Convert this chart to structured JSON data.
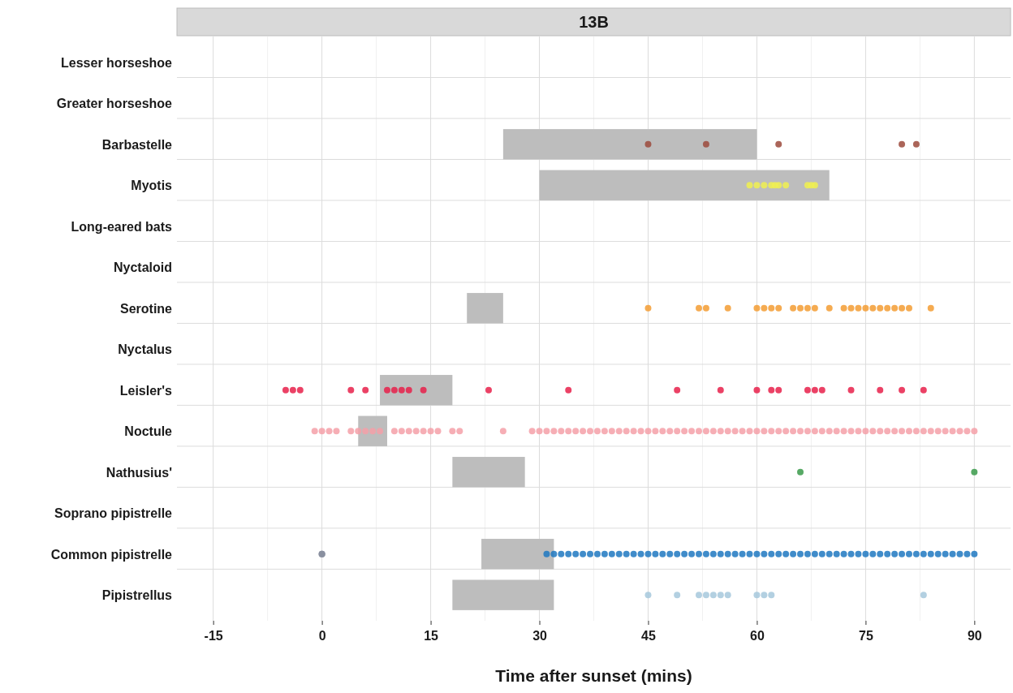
{
  "chart_data": {
    "type": "bar",
    "orientation": "horizontal",
    "title": "13B",
    "xlabel": "Time after sunset (mins)",
    "categories": [
      "Lesser horseshoe",
      "Greater horseshoe",
      "Barbastelle",
      "Myotis",
      "Long-eared bats",
      "Nyctaloid",
      "Serotine",
      "Nyctalus",
      "Leisler's",
      "Noctule",
      "Nathusius'",
      "Soprano pipistrelle",
      "Common pipistrelle",
      "Pipistrellus"
    ],
    "xlim": [
      -20,
      95
    ],
    "xticks": [
      -15,
      0,
      15,
      30,
      45,
      60,
      75,
      90
    ],
    "grid": true,
    "marker": "circle",
    "series": [
      {
        "color": "#bdbdbd",
        "base": [
          null,
          null,
          25,
          30,
          null,
          null,
          20,
          null,
          8,
          5,
          18,
          null,
          22,
          18
        ],
        "values": [
          null,
          null,
          35,
          40,
          null,
          null,
          5,
          null,
          10,
          4,
          10,
          null,
          10,
          14
        ]
      },
      {
        "type": "scatter",
        "color": "#9c4a3c",
        "x": [
          "Barbastelle",
          "Barbastelle",
          "Barbastelle",
          "Barbastelle",
          "Barbastelle"
        ],
        "values": [
          45,
          53,
          63,
          80,
          82
        ]
      },
      {
        "type": "scatter",
        "color": "#f0f050",
        "x": [
          "Myotis",
          "Myotis",
          "Myotis",
          "Myotis",
          "Myotis",
          "Myotis",
          "Myotis",
          "Myotis",
          "Myotis",
          "Myotis"
        ],
        "values": [
          59,
          60,
          61,
          62,
          62.5,
          63,
          64,
          67,
          67.5,
          68
        ]
      },
      {
        "type": "scatter",
        "color": "#f39c33",
        "x": [
          "Serotine",
          "Serotine",
          "Serotine",
          "Serotine",
          "Serotine",
          "Serotine",
          "Serotine",
          "Serotine",
          "Serotine",
          "Serotine",
          "Serotine",
          "Serotine",
          "Serotine",
          "Serotine",
          "Serotine",
          "Serotine",
          "Serotine",
          "Serotine",
          "Serotine",
          "Serotine",
          "Serotine",
          "Serotine",
          "Serotine",
          "Serotine"
        ],
        "values": [
          45,
          52,
          53,
          56,
          60,
          61,
          62,
          63,
          65,
          66,
          67,
          68,
          70,
          72,
          73,
          74,
          75,
          76,
          77,
          78,
          79,
          80,
          81,
          84
        ]
      },
      {
        "type": "scatter",
        "color": "#e8204a",
        "x": [
          "Leisler's",
          "Leisler's",
          "Leisler's",
          "Leisler's",
          "Leisler's",
          "Leisler's",
          "Leisler's",
          "Leisler's",
          "Leisler's",
          "Leisler's",
          "Leisler's",
          "Leisler's",
          "Leisler's",
          "Leisler's",
          "Leisler's",
          "Leisler's",
          "Leisler's",
          "Leisler's",
          "Leisler's",
          "Leisler's",
          "Leisler's",
          "Leisler's",
          "Leisler's",
          "Leisler's"
        ],
        "values": [
          -5,
          -4,
          -3,
          4,
          6,
          9,
          10,
          11,
          12,
          14,
          23,
          34,
          49,
          55,
          60,
          62,
          63,
          67,
          68,
          69,
          73,
          77,
          80,
          83
        ]
      },
      {
        "type": "scatter",
        "color": "#f4a0a8",
        "x": [
          "Noctule",
          "Noctule",
          "Noctule",
          "Noctule",
          "Noctule",
          "Noctule",
          "Noctule",
          "Noctule",
          "Noctule",
          "Noctule",
          "Noctule",
          "Noctule",
          "Noctule",
          "Noctule",
          "Noctule",
          "Noctule",
          "Noctule",
          "Noctule",
          "Noctule",
          "Noctule",
          "Noctule",
          "Noctule",
          "Noctule",
          "Noctule",
          "Noctule",
          "Noctule",
          "Noctule",
          "Noctule",
          "Noctule",
          "Noctule",
          "Noctule",
          "Noctule",
          "Noctule",
          "Noctule",
          "Noctule",
          "Noctule",
          "Noctule",
          "Noctule",
          "Noctule",
          "Noctule",
          "Noctule",
          "Noctule",
          "Noctule",
          "Noctule",
          "Noctule",
          "Noctule",
          "Noctule",
          "Noctule",
          "Noctule",
          "Noctule",
          "Noctule",
          "Noctule",
          "Noctule",
          "Noctule",
          "Noctule",
          "Noctule",
          "Noctule",
          "Noctule",
          "Noctule",
          "Noctule",
          "Noctule",
          "Noctule",
          "Noctule",
          "Noctule",
          "Noctule",
          "Noctule",
          "Noctule",
          "Noctule",
          "Noctule",
          "Noctule",
          "Noctule",
          "Noctule",
          "Noctule",
          "Noctule",
          "Noctule",
          "Noctule",
          "Noctule",
          "Noctule",
          "Noctule",
          "Noctule",
          "Noctule"
        ],
        "values": [
          -1,
          0,
          1,
          2,
          4,
          5,
          6,
          7,
          8,
          10,
          11,
          12,
          13,
          14,
          15,
          16,
          18,
          19,
          25,
          29,
          30,
          31,
          32,
          33,
          34,
          35,
          36,
          37,
          38,
          39,
          40,
          41,
          42,
          43,
          44,
          45,
          46,
          47,
          48,
          49,
          50,
          51,
          52,
          53,
          54,
          55,
          56,
          57,
          58,
          59,
          60,
          61,
          62,
          63,
          64,
          65,
          66,
          67,
          68,
          69,
          70,
          71,
          72,
          73,
          74,
          75,
          76,
          77,
          78,
          79,
          80,
          81,
          82,
          83,
          84,
          85,
          86,
          87,
          88,
          89,
          90
        ]
      },
      {
        "type": "scatter",
        "color": "#3a9a4a",
        "x": [
          "Nathusius'",
          "Nathusius'"
        ],
        "values": [
          66,
          90
        ]
      },
      {
        "type": "scatter",
        "color": "#8a8fa0",
        "x": [
          "Common pipistrelle",
          "Common pipistrelle",
          "Common pipistrelle"
        ],
        "values": [
          0,
          0,
          0
        ]
      },
      {
        "type": "scatter",
        "color": "#1f78c1",
        "x": [
          "Common pipistrelle",
          "Common pipistrelle",
          "Common pipistrelle",
          "Common pipistrelle",
          "Common pipistrelle",
          "Common pipistrelle",
          "Common pipistrelle",
          "Common pipistrelle",
          "Common pipistrelle",
          "Common pipistrelle",
          "Common pipistrelle",
          "Common pipistrelle",
          "Common pipistrelle",
          "Common pipistrelle",
          "Common pipistrelle",
          "Common pipistrelle",
          "Common pipistrelle",
          "Common pipistrelle",
          "Common pipistrelle",
          "Common pipistrelle",
          "Common pipistrelle",
          "Common pipistrelle",
          "Common pipistrelle",
          "Common pipistrelle",
          "Common pipistrelle",
          "Common pipistrelle",
          "Common pipistrelle",
          "Common pipistrelle",
          "Common pipistrelle",
          "Common pipistrelle",
          "Common pipistrelle",
          "Common pipistrelle",
          "Common pipistrelle",
          "Common pipistrelle",
          "Common pipistrelle",
          "Common pipistrelle",
          "Common pipistrelle",
          "Common pipistrelle",
          "Common pipistrelle",
          "Common pipistrelle",
          "Common pipistrelle",
          "Common pipistrelle",
          "Common pipistrelle",
          "Common pipistrelle",
          "Common pipistrelle",
          "Common pipistrelle",
          "Common pipistrelle",
          "Common pipistrelle",
          "Common pipistrelle",
          "Common pipistrelle",
          "Common pipistrelle",
          "Common pipistrelle",
          "Common pipistrelle",
          "Common pipistrelle",
          "Common pipistrelle",
          "Common pipistrelle",
          "Common pipistrelle",
          "Common pipistrelle",
          "Common pipistrelle",
          "Common pipistrelle"
        ],
        "values": [
          31,
          32,
          33,
          34,
          35,
          36,
          37,
          38,
          39,
          40,
          41,
          42,
          43,
          44,
          45,
          46,
          47,
          48,
          49,
          50,
          51,
          52,
          53,
          54,
          55,
          56,
          57,
          58,
          59,
          60,
          61,
          62,
          63,
          64,
          65,
          66,
          67,
          68,
          69,
          70,
          71,
          72,
          73,
          74,
          75,
          76,
          77,
          78,
          79,
          80,
          81,
          82,
          83,
          84,
          85,
          86,
          87,
          88,
          89,
          90
        ]
      },
      {
        "type": "scatter",
        "color": "#a6c8dc",
        "x": [
          "Pipistrellus",
          "Pipistrellus",
          "Pipistrellus",
          "Pipistrellus",
          "Pipistrellus",
          "Pipistrellus",
          "Pipistrellus",
          "Pipistrellus",
          "Pipistrellus",
          "Pipistrellus",
          "Pipistrellus"
        ],
        "values": [
          45,
          49,
          52,
          53,
          54,
          55,
          56,
          60,
          61,
          62,
          83
        ]
      }
    ]
  }
}
